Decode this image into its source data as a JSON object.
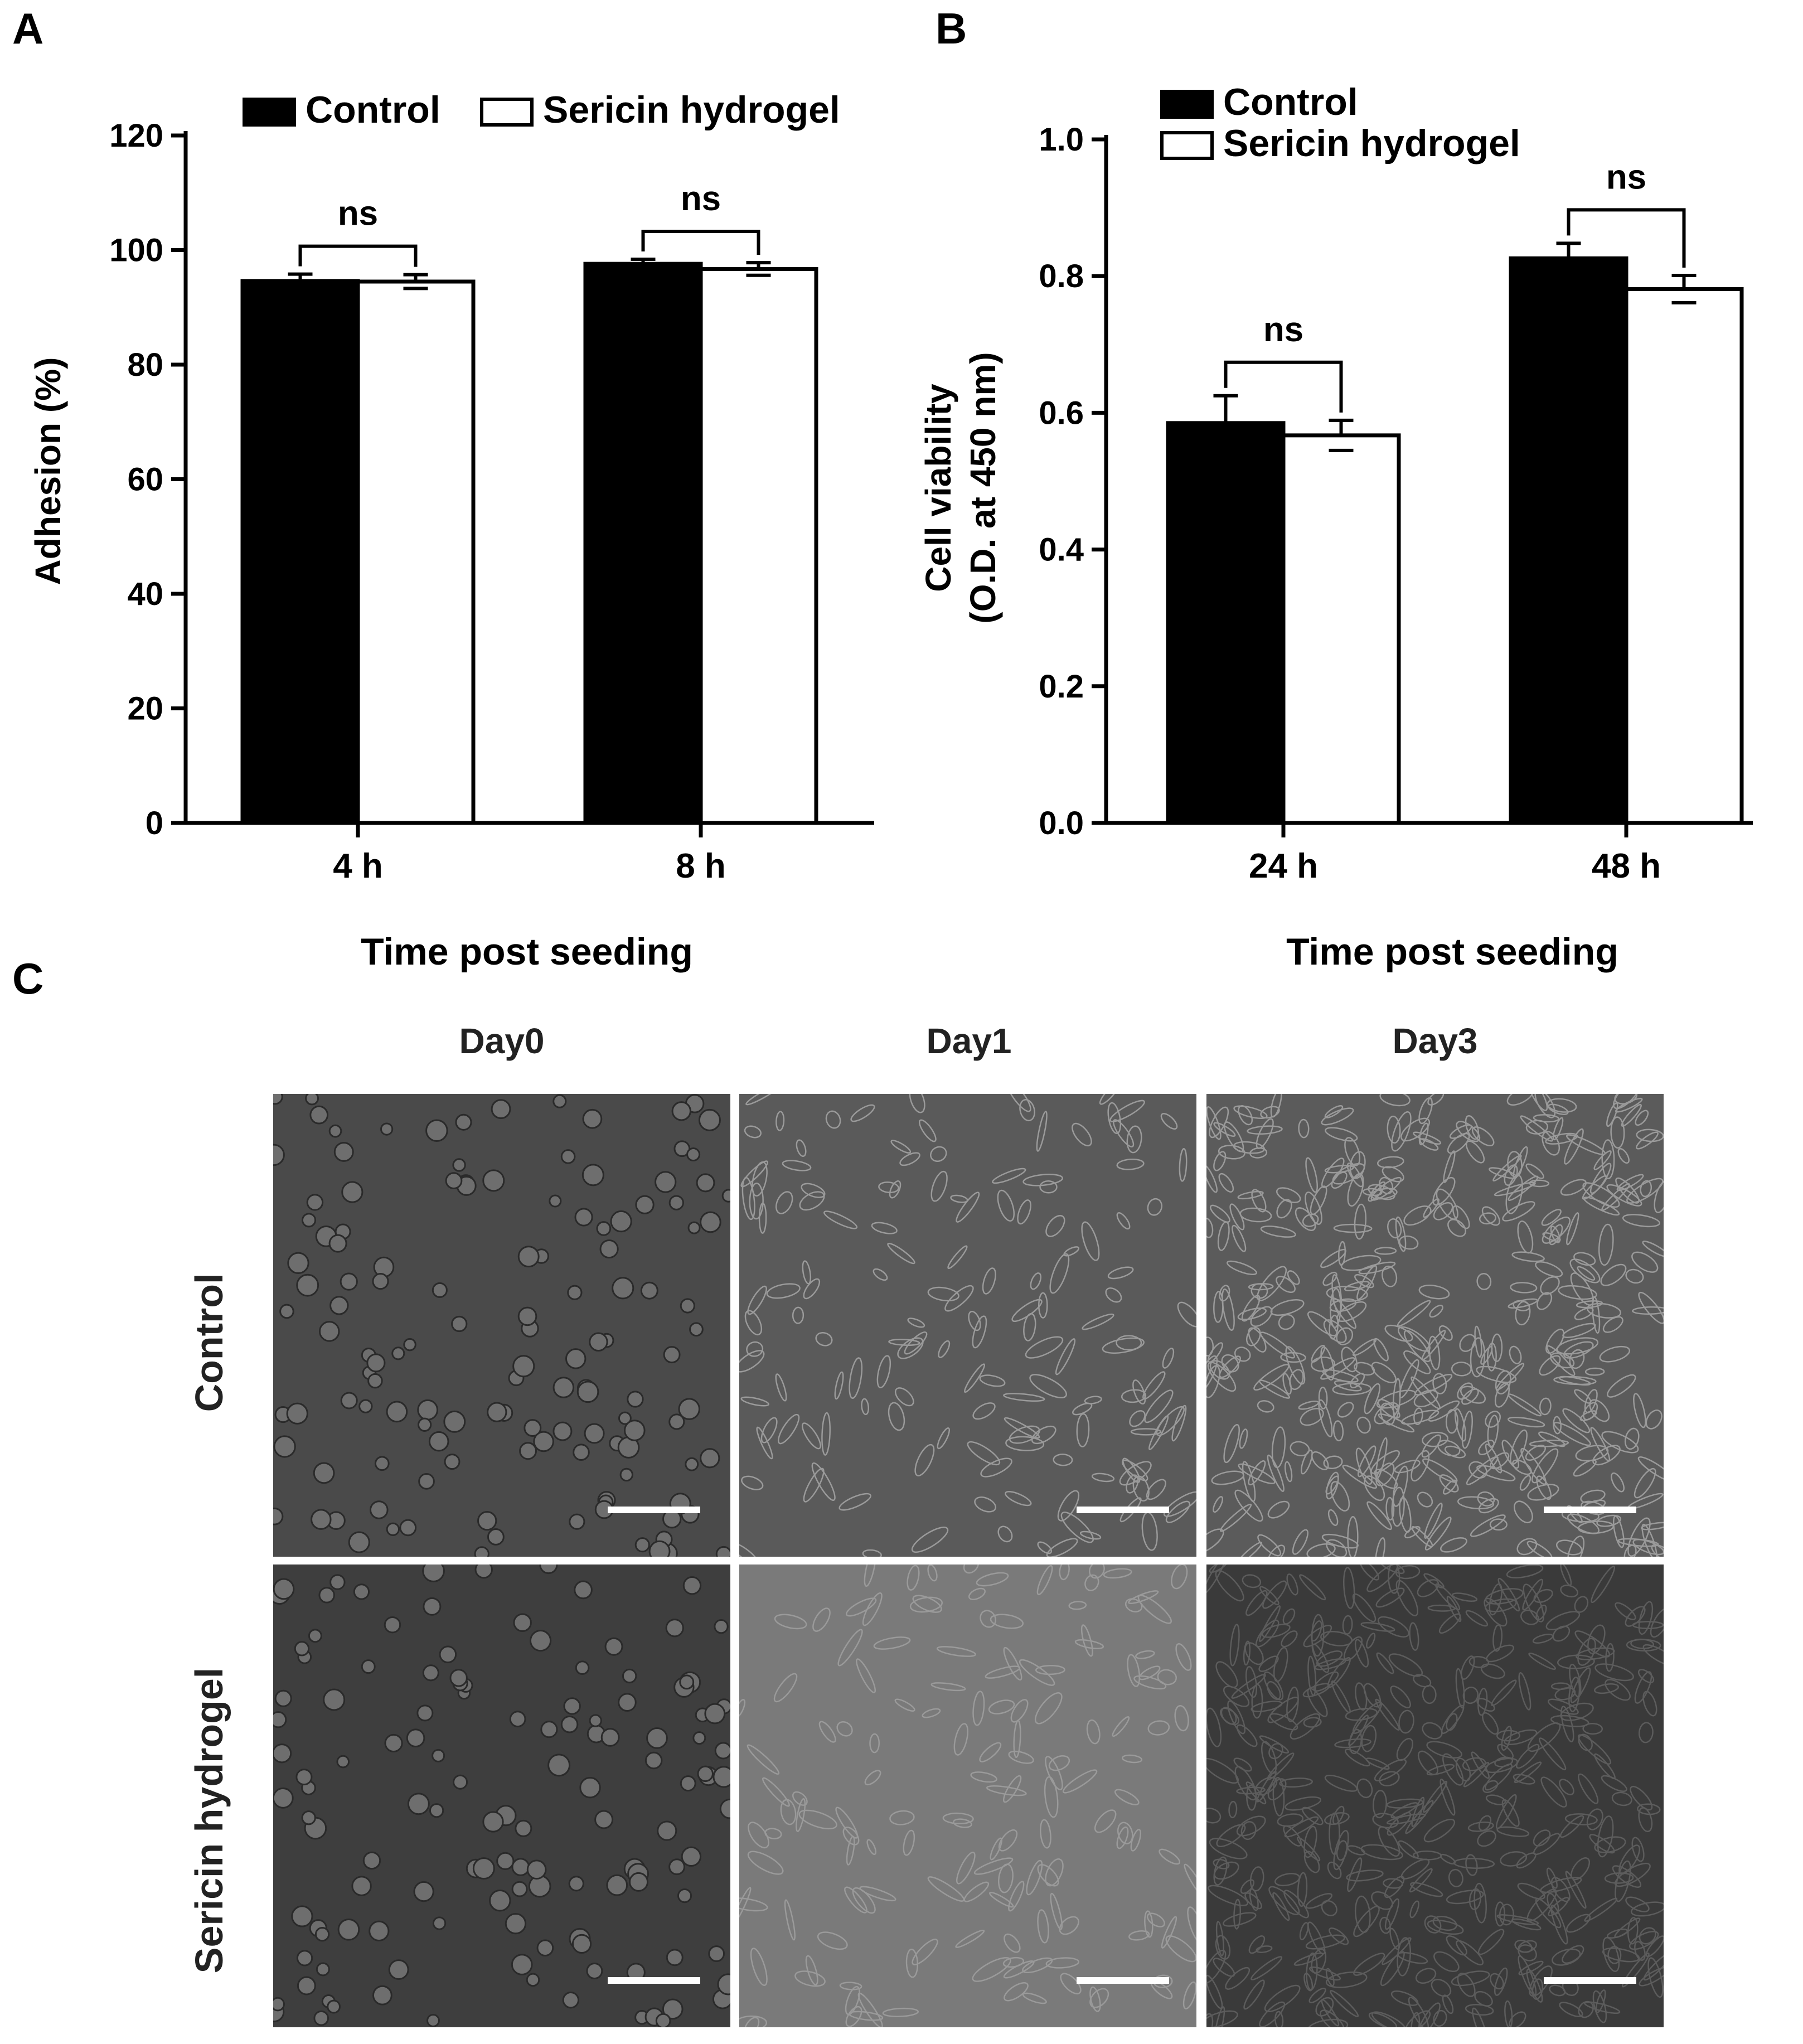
{
  "panels": {
    "a": "A",
    "b": "B",
    "c": "C"
  },
  "colors": {
    "control": "#000000",
    "sericin": "#ffffff",
    "axis": "#000000"
  },
  "chart_data": [
    {
      "type": "bar",
      "panel": "A",
      "categories": [
        "4 h",
        "8 h"
      ],
      "series": [
        {
          "name": "Control",
          "values": [
            94.6,
            97.6
          ],
          "errors": [
            1.2,
            0.8
          ]
        },
        {
          "name": "Sericin hydrogel",
          "values": [
            94.5,
            96.7
          ],
          "errors": [
            1.2,
            1.1
          ]
        }
      ],
      "xlabel": "Time post seeding",
      "ylabel": "Adhesion (%)",
      "ylim": [
        0,
        120
      ],
      "yticks": [
        "0",
        "20",
        "40",
        "60",
        "80",
        "100",
        "120"
      ],
      "significance": [
        "ns",
        "ns"
      ],
      "legend_position": "top",
      "grid": false
    },
    {
      "type": "bar",
      "panel": "B",
      "categories": [
        "24 h",
        "48 h"
      ],
      "series": [
        {
          "name": "Control",
          "values": [
            0.585,
            0.826
          ],
          "errors": [
            0.04,
            0.022
          ]
        },
        {
          "name": "Sericin hydrogel",
          "values": [
            0.567,
            0.781
          ],
          "errors": [
            0.022,
            0.02
          ]
        }
      ],
      "xlabel": "Time post seeding",
      "ylabel": [
        "Cell viability",
        "(O.D. at 450 nm)"
      ],
      "ylim": [
        0,
        1.0
      ],
      "yticks": [
        "0.0",
        "0.2",
        "0.4",
        "0.6",
        "0.8",
        "1.0"
      ],
      "significance": [
        "ns",
        "ns"
      ],
      "legend_position": "top-left",
      "grid": false
    }
  ],
  "micrographs": {
    "columns": [
      "Day0",
      "Day1",
      "Day3"
    ],
    "rows": [
      "Control",
      "Sericin hydrogel"
    ],
    "scale_bar_color": "#ffffff"
  }
}
